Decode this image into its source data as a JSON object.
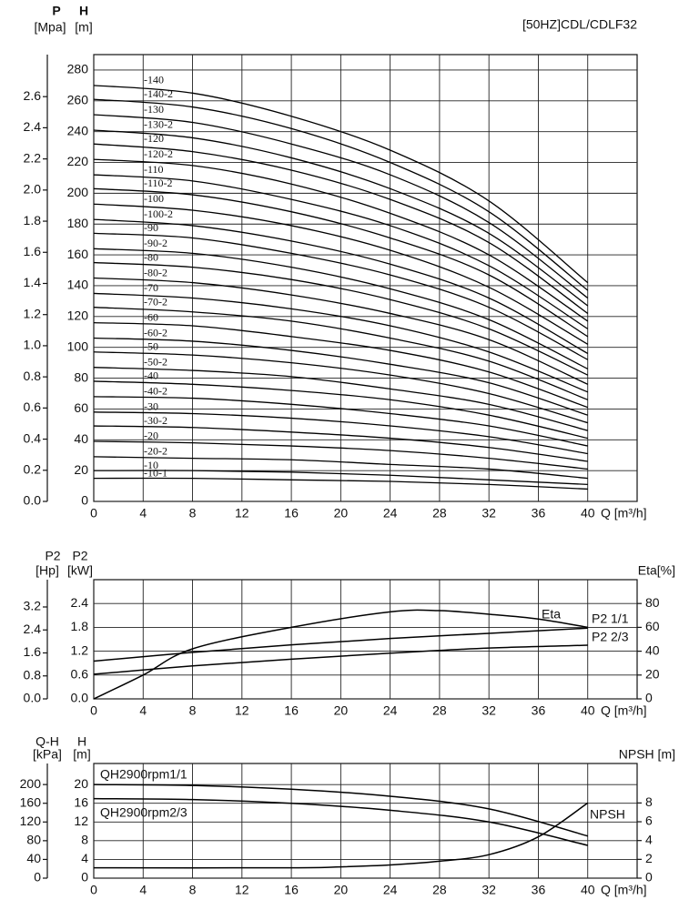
{
  "chart_data": [
    {
      "type": "line",
      "title": "[50HZ]CDL/CDLF32",
      "x_label": "Q [m³/h]",
      "y_label": "H",
      "y_unit": "[m]",
      "y3_label": "P",
      "y3_unit": "[Mpa]",
      "xlim": [
        0,
        44
      ],
      "xticks": [
        0,
        4,
        8,
        12,
        16,
        20,
        24,
        28,
        32,
        36,
        40
      ],
      "ylim": [
        0,
        290
      ],
      "yticks": [
        0,
        20,
        40,
        60,
        80,
        100,
        120,
        140,
        160,
        180,
        200,
        220,
        240,
        260,
        280
      ],
      "y3lim": [
        0,
        2.87
      ],
      "y3ticks": [
        {
          "value": 0,
          "label": "0.0"
        },
        0.2,
        0.4,
        0.6,
        0.8,
        {
          "value": 1,
          "label": "1.0"
        },
        1.2,
        1.4,
        1.6,
        1.8,
        {
          "value": 2,
          "label": "2.0"
        },
        2.2,
        2.4,
        2.6
      ],
      "grid": true,
      "x": [
        0,
        8,
        16,
        24,
        32,
        40
      ],
      "series": [
        {
          "name": "-140",
          "color": "#000000",
          "values": [
            270,
            265,
            250,
            228,
            195,
            142
          ]
        },
        {
          "name": "-140-2",
          "color": "#000000",
          "values": [
            261,
            256,
            242,
            220,
            188,
            137
          ]
        },
        {
          "name": "-130",
          "color": "#000000",
          "values": [
            251,
            246,
            232,
            212,
            181,
            132
          ]
        },
        {
          "name": "-130-2",
          "color": "#000000",
          "values": [
            241,
            236,
            223,
            203,
            174,
            127
          ]
        },
        {
          "name": "-120",
          "color": "#000000",
          "values": [
            232,
            227,
            215,
            196,
            168,
            122
          ]
        },
        {
          "name": "-120-2",
          "color": "#000000",
          "values": [
            222,
            218,
            206,
            187,
            160,
            117
          ]
        },
        {
          "name": "-110",
          "color": "#000000",
          "values": [
            212,
            208,
            196,
            179,
            153,
            112
          ]
        },
        {
          "name": "-110-2",
          "color": "#000000",
          "values": [
            203,
            199,
            188,
            171,
            147,
            107
          ]
        },
        {
          "name": "-100",
          "color": "#000000",
          "values": [
            193,
            189,
            179,
            163,
            139,
            102
          ]
        },
        {
          "name": "-100-2",
          "color": "#000000",
          "values": [
            183,
            179,
            169,
            154,
            132,
            96
          ]
        },
        {
          "name": "-90",
          "color": "#000000",
          "values": [
            174,
            171,
            161,
            147,
            126,
            92
          ]
        },
        {
          "name": "-90-2",
          "color": "#000000",
          "values": [
            164,
            161,
            152,
            138,
            118,
            86
          ]
        },
        {
          "name": "-80",
          "color": "#000000",
          "values": [
            155,
            152,
            144,
            131,
            112,
            82
          ]
        },
        {
          "name": "-80-2",
          "color": "#000000",
          "values": [
            145,
            142,
            134,
            122,
            105,
            76
          ]
        },
        {
          "name": "-70",
          "color": "#000000",
          "values": [
            135,
            132,
            125,
            114,
            97,
            71
          ]
        },
        {
          "name": "-70-2",
          "color": "#000000",
          "values": [
            126,
            123,
            117,
            106,
            91,
            66
          ]
        },
        {
          "name": "-60",
          "color": "#000000",
          "values": [
            116,
            114,
            107,
            98,
            84,
            61
          ]
        },
        {
          "name": "-60-2",
          "color": "#000000",
          "values": [
            106,
            104,
            98,
            89,
            77,
            56
          ]
        },
        {
          "name": "-50",
          "color": "#000000",
          "values": [
            97,
            95,
            90,
            82,
            70,
            51
          ]
        },
        {
          "name": "-50-2",
          "color": "#000000",
          "values": [
            87,
            85,
            81,
            73,
            63,
            46
          ]
        },
        {
          "name": "-40",
          "color": "#000000",
          "values": [
            78,
            76,
            72,
            66,
            56,
            41
          ]
        },
        {
          "name": "-40-2",
          "color": "#000000",
          "values": [
            68,
            67,
            63,
            57,
            49,
            36
          ]
        },
        {
          "name": "-30",
          "color": "#000000",
          "values": [
            58,
            57,
            54,
            49,
            42,
            31
          ]
        },
        {
          "name": "-30-2",
          "color": "#000000",
          "values": [
            49,
            48,
            45,
            41,
            35,
            26
          ]
        },
        {
          "name": "-20",
          "color": "#000000",
          "values": [
            39,
            38,
            36,
            33,
            28,
            21
          ]
        },
        {
          "name": "-20-2",
          "color": "#000000",
          "values": [
            29,
            28,
            27,
            24,
            21,
            15
          ]
        },
        {
          "name": "-10",
          "color": "#000000",
          "values": [
            20,
            20,
            19,
            17,
            14,
            11
          ]
        },
        {
          "name": "-10-1",
          "color": "#000000",
          "values": [
            15,
            15,
            14,
            13,
            11,
            8
          ]
        }
      ]
    },
    {
      "type": "line",
      "x_label": "Q [m³/h]",
      "y_label": "P2",
      "y_unit": "[kW]",
      "y3_label": "P2",
      "y3_unit": "[Hp]",
      "y2_label": "Eta[%]",
      "xlim": [
        0,
        44
      ],
      "xticks": [
        0,
        4,
        8,
        12,
        16,
        20,
        24,
        28,
        32,
        36,
        40
      ],
      "ylim": [
        0,
        3
      ],
      "yticks": [
        {
          "value": 0,
          "label": "0.0"
        },
        0.6,
        1.2,
        1.8,
        2.4
      ],
      "y3lim": [
        0,
        4.15
      ],
      "y3ticks": [
        {
          "value": 0,
          "label": "0.0"
        },
        0.8,
        1.6,
        2.4,
        3.2
      ],
      "y2lim": [
        0,
        100
      ],
      "y2ticks": [
        0,
        20,
        40,
        60,
        80
      ],
      "grid": true,
      "series": [
        {
          "name": "Eta",
          "color": "#000000",
          "axis": "y2",
          "x": [
            0,
            4,
            8,
            16,
            24,
            28,
            32,
            36,
            40
          ],
          "values": [
            0,
            20,
            42,
            60,
            73,
            74,
            71,
            67,
            60
          ]
        },
        {
          "name": "P2 1/1",
          "color": "#000000",
          "x": [
            0,
            8,
            16,
            24,
            32,
            40
          ],
          "values": [
            0.95,
            1.17,
            1.36,
            1.52,
            1.65,
            1.78
          ]
        },
        {
          "name": "P2 2/3",
          "color": "#000000",
          "x": [
            0,
            8,
            16,
            24,
            32,
            40
          ],
          "values": [
            0.62,
            0.83,
            1.0,
            1.15,
            1.28,
            1.35
          ]
        }
      ]
    },
    {
      "type": "line",
      "x_label": "Q [m³/h]",
      "y_label": "H",
      "y_unit": "[m]",
      "y3_label": "Q-H",
      "y3_unit": "[kPa]",
      "y2_label": "NPSH [m]",
      "xlim": [
        0,
        44
      ],
      "xticks": [
        0,
        4,
        8,
        12,
        16,
        20,
        24,
        28,
        32,
        36,
        40
      ],
      "ylim": [
        0,
        24.5
      ],
      "yticks": [
        0,
        4,
        8,
        12,
        16,
        20
      ],
      "y3lim": [
        0,
        245
      ],
      "y3ticks": [
        0,
        40,
        80,
        120,
        160,
        200
      ],
      "y2lim": [
        0,
        12.2
      ],
      "y2ticks": [
        0,
        2,
        4,
        6,
        8
      ],
      "grid": true,
      "series": [
        {
          "name": "QH2900rpm1/1",
          "color": "#000000",
          "x": [
            0,
            8,
            16,
            24,
            32,
            40
          ],
          "values": [
            20,
            19.8,
            19,
            17.5,
            14.8,
            9
          ]
        },
        {
          "name": "QH2900rpm2/3",
          "color": "#000000",
          "x": [
            0,
            8,
            16,
            24,
            32,
            40
          ],
          "values": [
            17,
            16.8,
            16,
            14.5,
            12,
            7
          ]
        },
        {
          "name": "NPSH",
          "color": "#000000",
          "axis": "y2",
          "x": [
            0,
            16,
            20,
            24,
            28,
            32,
            36,
            40
          ],
          "values": [
            1.1,
            1.1,
            1.2,
            1.4,
            1.8,
            2.5,
            4.4,
            8
          ]
        }
      ]
    }
  ]
}
